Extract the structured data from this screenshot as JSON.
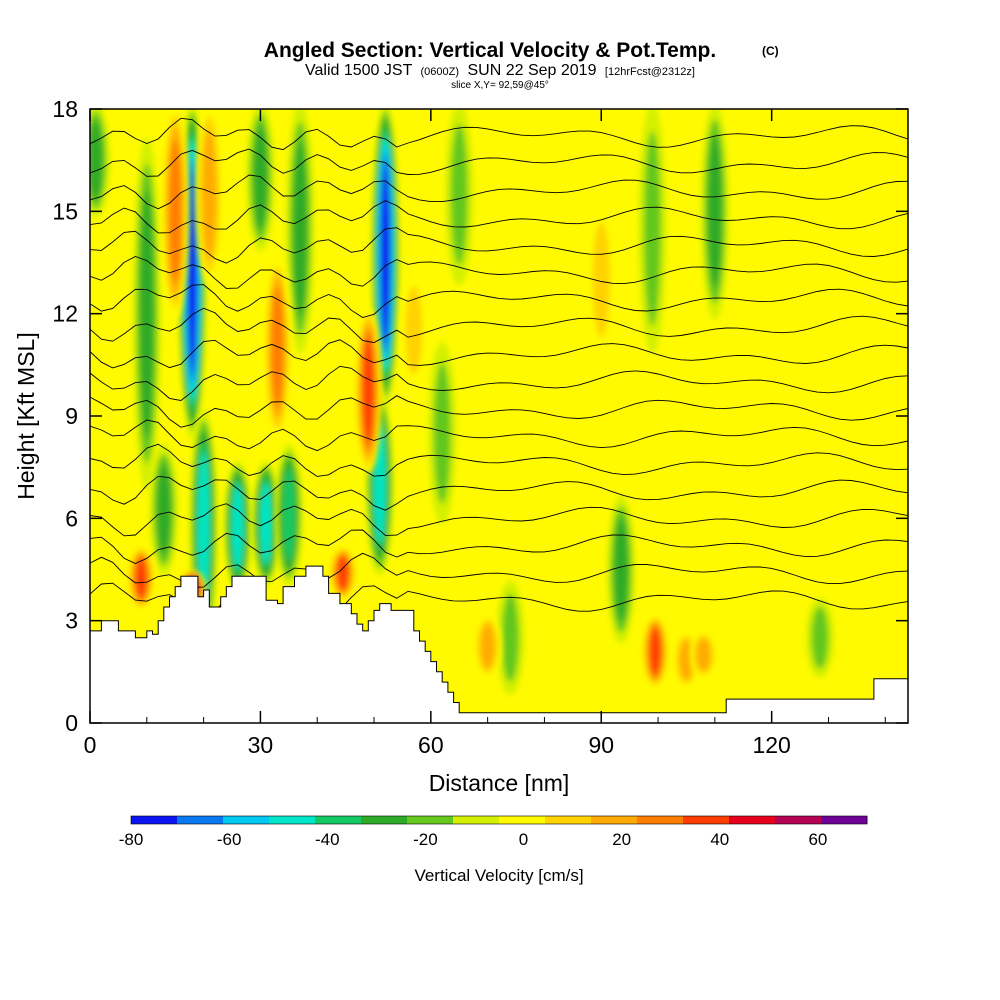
{
  "header": {
    "title": "Angled Section: Vertical Velocity & Pot.Temp.",
    "title_mark": "(C)",
    "valid_a": "Valid 1500 JST",
    "valid_z": "(0600Z)",
    "valid_b": "SUN 22 Sep 2019",
    "valid_fc": "[12hrFcst@2312z]",
    "slice": "slice X,Y= 92,59@45°"
  },
  "chart_data": {
    "type": "heatmap",
    "xlabel": "Distance [nm]",
    "ylabel": "Height [Kft MSL]",
    "xlim": [
      0,
      144
    ],
    "ylim": [
      0,
      18
    ],
    "x_ticks": [
      "0",
      "30",
      "60",
      "90",
      "120"
    ],
    "x_tick_values": [
      0,
      30,
      60,
      90,
      120
    ],
    "y_ticks": [
      "0",
      "3",
      "6",
      "9",
      "12",
      "15",
      "18"
    ],
    "y_tick_values": [
      0,
      3,
      6,
      9,
      12,
      15,
      18
    ],
    "colorbar": {
      "label": "Vertical Velocity [cm/s]",
      "tick_labels": [
        "-80",
        "-60",
        "-40",
        "-20",
        "0",
        "20",
        "40",
        "60"
      ],
      "tick_values": [
        -80,
        -60,
        -40,
        -20,
        0,
        20,
        40,
        60
      ],
      "bounds": [
        -80,
        -70,
        -60,
        -50,
        -40,
        -30,
        -20,
        -10,
        0,
        10,
        20,
        30,
        40,
        50,
        60,
        70
      ],
      "colors": [
        "#0a14f0",
        "#0a78f0",
        "#00c8f0",
        "#00e6c8",
        "#14c864",
        "#2daa28",
        "#64c81e",
        "#d2f000",
        "#fffa00",
        "#ffd200",
        "#ffaa00",
        "#ff7d00",
        "#ff3c00",
        "#e6001e",
        "#b40050"
      ],
      "top_color": "#6e0096"
    },
    "background_value": 5,
    "updrafts_downdrafts": [
      {
        "x": 18,
        "z0": 8.5,
        "z1": 18,
        "value": -75
      },
      {
        "x": 20,
        "z0": 2.5,
        "z1": 9,
        "value": -40
      },
      {
        "x": 26,
        "z0": 4,
        "z1": 7.5,
        "value": -42
      },
      {
        "x": 31,
        "z0": 4.2,
        "z1": 7.5,
        "value": -45
      },
      {
        "x": 35,
        "z0": 4.2,
        "z1": 8,
        "value": -38
      },
      {
        "x": 52,
        "z0": 9.5,
        "z1": 18,
        "value": -78
      },
      {
        "x": 51,
        "z0": 4.5,
        "z1": 9.5,
        "value": -42
      },
      {
        "x": 10,
        "z0": 7,
        "z1": 17,
        "value": -25
      },
      {
        "x": 13,
        "z0": 4.5,
        "z1": 8,
        "value": -22
      },
      {
        "x": 30,
        "z0": 14,
        "z1": 18,
        "value": -20
      },
      {
        "x": 37,
        "z0": 11,
        "z1": 18,
        "value": -22
      },
      {
        "x": 62,
        "z0": 6,
        "z1": 11,
        "value": -15
      },
      {
        "x": 65,
        "z0": 13,
        "z1": 18,
        "value": -18
      },
      {
        "x": 74,
        "z0": 1,
        "z1": 4,
        "value": -15
      },
      {
        "x": 93.5,
        "z0": 2.5,
        "z1": 6.5,
        "value": -28
      },
      {
        "x": 99,
        "z0": 11,
        "z1": 18,
        "value": -15
      },
      {
        "x": 110,
        "z0": 12,
        "z1": 18,
        "value": -28
      },
      {
        "x": 128.5,
        "z0": 1.5,
        "z1": 3.5,
        "value": -15
      },
      {
        "x": 1,
        "z0": 15,
        "z1": 18,
        "value": -20
      },
      {
        "x": 15,
        "z0": 12,
        "z1": 18,
        "value": 35
      },
      {
        "x": 21,
        "z0": 13,
        "z1": 18,
        "value": 28
      },
      {
        "x": 33,
        "z0": 8.5,
        "z1": 13.5,
        "value": 38
      },
      {
        "x": 49,
        "z0": 7.5,
        "z1": 12,
        "value": 45
      },
      {
        "x": 9,
        "z0": 3.5,
        "z1": 5,
        "value": 42
      },
      {
        "x": 18,
        "z0": 3.6,
        "z1": 4.3,
        "value": 60
      },
      {
        "x": 44.5,
        "z0": 3.8,
        "z1": 5,
        "value": 40
      },
      {
        "x": 99.5,
        "z0": 1.2,
        "z1": 3,
        "value": 42
      },
      {
        "x": 105,
        "z0": 1.2,
        "z1": 2.5,
        "value": 28
      },
      {
        "x": 108,
        "z0": 1.5,
        "z1": 2.5,
        "value": 25
      },
      {
        "x": 70,
        "z0": 1.5,
        "z1": 3,
        "value": 28
      },
      {
        "x": 90,
        "z0": 11,
        "z1": 15,
        "value": 18
      },
      {
        "x": 57,
        "z0": 10,
        "z1": 13,
        "value": 15
      }
    ],
    "terrain": [
      [
        0,
        2.7
      ],
      [
        2,
        2.7
      ],
      [
        2,
        3.0
      ],
      [
        5,
        3.0
      ],
      [
        5,
        2.7
      ],
      [
        8,
        2.7
      ],
      [
        8,
        2.5
      ],
      [
        10,
        2.5
      ],
      [
        10,
        2.7
      ],
      [
        11,
        2.7
      ],
      [
        11,
        2.6
      ],
      [
        12,
        2.6
      ],
      [
        12,
        3.0
      ],
      [
        13,
        3.0
      ],
      [
        13,
        3.4
      ],
      [
        14,
        3.4
      ],
      [
        14,
        3.7
      ],
      [
        15,
        3.7
      ],
      [
        15,
        4.0
      ],
      [
        16,
        4.0
      ],
      [
        16,
        4.3
      ],
      [
        19,
        4.3
      ],
      [
        19,
        3.7
      ],
      [
        20,
        3.7
      ],
      [
        20,
        3.9
      ],
      [
        21,
        3.9
      ],
      [
        21,
        3.4
      ],
      [
        23,
        3.4
      ],
      [
        23,
        3.7
      ],
      [
        24,
        3.7
      ],
      [
        24,
        4.0
      ],
      [
        25,
        4.0
      ],
      [
        25,
        4.3
      ],
      [
        31,
        4.3
      ],
      [
        31,
        3.6
      ],
      [
        33,
        3.6
      ],
      [
        33,
        3.5
      ],
      [
        34,
        3.5
      ],
      [
        34,
        4.0
      ],
      [
        36,
        4.0
      ],
      [
        36,
        4.3
      ],
      [
        38,
        4.3
      ],
      [
        38,
        4.6
      ],
      [
        41,
        4.6
      ],
      [
        41,
        4.3
      ],
      [
        42,
        4.3
      ],
      [
        42,
        3.8
      ],
      [
        44,
        3.8
      ],
      [
        44,
        3.5
      ],
      [
        46,
        3.5
      ],
      [
        46,
        3.2
      ],
      [
        47,
        3.2
      ],
      [
        47,
        2.9
      ],
      [
        48,
        2.9
      ],
      [
        48,
        2.7
      ],
      [
        49,
        2.7
      ],
      [
        49,
        3.0
      ],
      [
        50,
        3.0
      ],
      [
        50,
        3.3
      ],
      [
        51,
        3.3
      ],
      [
        51,
        3.5
      ],
      [
        53,
        3.5
      ],
      [
        53,
        3.3
      ],
      [
        57,
        3.3
      ],
      [
        57,
        2.7
      ],
      [
        58,
        2.7
      ],
      [
        58,
        2.4
      ],
      [
        59,
        2.4
      ],
      [
        59,
        2.1
      ],
      [
        60,
        2.1
      ],
      [
        60,
        1.8
      ],
      [
        61,
        1.8
      ],
      [
        61,
        1.5
      ],
      [
        62,
        1.5
      ],
      [
        62,
        1.2
      ],
      [
        63,
        1.2
      ],
      [
        63,
        0.9
      ],
      [
        64,
        0.9
      ],
      [
        64,
        0.6
      ],
      [
        65,
        0.6
      ],
      [
        65,
        0.3
      ],
      [
        112,
        0.3
      ],
      [
        112,
        0.7
      ],
      [
        138,
        0.7
      ],
      [
        138,
        1.3
      ],
      [
        144,
        1.3
      ]
    ],
    "theta_contours": [
      {
        "label": "",
        "z0": 3.6
      },
      {
        "label": "",
        "z0": 4.4
      },
      {
        "label": "",
        "z0": 5.2
      },
      {
        "label": "",
        "z0": 6.0
      },
      {
        "label": "",
        "z0": 6.8
      },
      {
        "label": "",
        "z0": 7.6
      },
      {
        "label": "",
        "z0": 8.4
      },
      {
        "label": "",
        "z0": 9.2
      },
      {
        "label": "",
        "z0": 10.0
      },
      {
        "label": "",
        "z0": 10.8
      },
      {
        "label": "",
        "z0": 11.6
      },
      {
        "label": "",
        "z0": 12.4
      },
      {
        "label": "",
        "z0": 13.2
      },
      {
        "label": "",
        "z0": 14.0
      },
      {
        "label": "",
        "z0": 14.8
      },
      {
        "label": "",
        "z0": 15.6
      },
      {
        "label": "",
        "z0": 16.4
      },
      {
        "label": "",
        "z0": 17.2
      }
    ]
  }
}
